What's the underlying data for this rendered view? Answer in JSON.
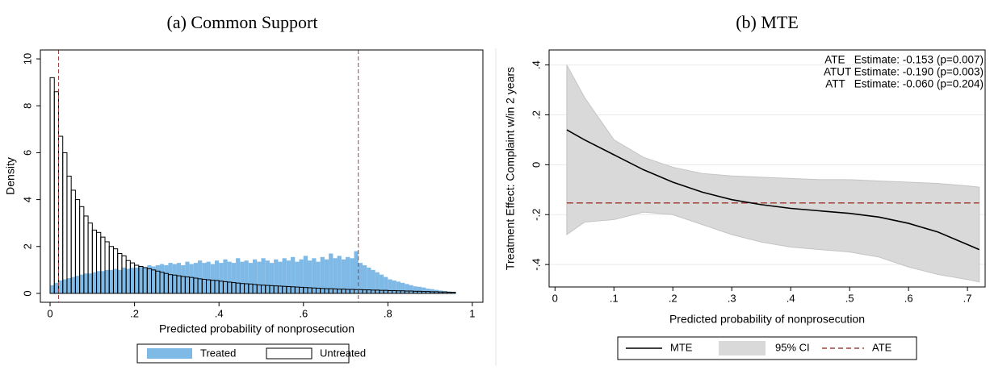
{
  "chart_data": [
    {
      "type": "histogram",
      "title": "(a) Common Support",
      "x_label": "Predicted probability of nonprosecution",
      "y_label": "Density",
      "bins": [
        0,
        0.01,
        0.02,
        0.03,
        0.04,
        0.05,
        0.06,
        0.07,
        0.08,
        0.09,
        0.1,
        0.11,
        0.12,
        0.13,
        0.14,
        0.15,
        0.16,
        0.17,
        0.18,
        0.19,
        0.2,
        0.21,
        0.22,
        0.23,
        0.24,
        0.25,
        0.26,
        0.27,
        0.28,
        0.29,
        0.3,
        0.31,
        0.32,
        0.33,
        0.34,
        0.35,
        0.36,
        0.37,
        0.38,
        0.39,
        0.4,
        0.41,
        0.42,
        0.43,
        0.44,
        0.45,
        0.46,
        0.47,
        0.48,
        0.49,
        0.5,
        0.51,
        0.52,
        0.53,
        0.54,
        0.55,
        0.56,
        0.57,
        0.58,
        0.59,
        0.6,
        0.61,
        0.62,
        0.63,
        0.64,
        0.65,
        0.66,
        0.67,
        0.68,
        0.69,
        0.7,
        0.71,
        0.72,
        0.73,
        0.74,
        0.75,
        0.76,
        0.77,
        0.78,
        0.79,
        0.8,
        0.81,
        0.82,
        0.83,
        0.84,
        0.85,
        0.86,
        0.87,
        0.88,
        0.89,
        0.9,
        0.91,
        0.92,
        0.93,
        0.94,
        0.95,
        0.96
      ],
      "series": [
        {
          "name": "Treated",
          "color": "#7fb9e6",
          "values": [
            0.35,
            0.45,
            0.55,
            0.6,
            0.65,
            0.7,
            0.75,
            0.8,
            0.85,
            0.85,
            0.9,
            0.95,
            0.95,
            1.0,
            1.0,
            1.05,
            1.0,
            1.1,
            1.05,
            1.1,
            1.1,
            1.15,
            1.1,
            1.2,
            1.15,
            1.2,
            1.25,
            1.2,
            1.3,
            1.25,
            1.3,
            1.2,
            1.35,
            1.25,
            1.3,
            1.4,
            1.3,
            1.35,
            1.25,
            1.4,
            1.3,
            1.45,
            1.35,
            1.3,
            1.5,
            1.35,
            1.4,
            1.3,
            1.45,
            1.35,
            1.5,
            1.4,
            1.3,
            1.45,
            1.35,
            1.5,
            1.4,
            1.55,
            1.35,
            1.45,
            1.6,
            1.4,
            1.5,
            1.35,
            1.55,
            1.45,
            1.7,
            1.5,
            1.6,
            1.45,
            1.55,
            1.5,
            1.8,
            1.3,
            1.2,
            1.1,
            1.0,
            0.9,
            0.8,
            0.7,
            0.6,
            0.55,
            0.5,
            0.45,
            0.4,
            0.35,
            0.3,
            0.28,
            0.25,
            0.2,
            0.18,
            0.15,
            0.12,
            0.1,
            0.08,
            0.05
          ]
        },
        {
          "name": "Untreated",
          "color": "#000000",
          "values": [
            9.2,
            8.6,
            6.7,
            6.0,
            5.0,
            4.4,
            4.0,
            3.7,
            3.3,
            3.0,
            2.7,
            2.6,
            2.4,
            2.2,
            2.0,
            1.9,
            1.7,
            1.6,
            1.4,
            1.3,
            1.2,
            1.15,
            1.1,
            1.05,
            1.0,
            0.95,
            0.9,
            0.85,
            0.8,
            0.78,
            0.75,
            0.72,
            0.7,
            0.68,
            0.65,
            0.62,
            0.6,
            0.58,
            0.56,
            0.55,
            0.52,
            0.5,
            0.48,
            0.46,
            0.44,
            0.42,
            0.41,
            0.4,
            0.38,
            0.36,
            0.35,
            0.34,
            0.33,
            0.32,
            0.31,
            0.3,
            0.29,
            0.28,
            0.27,
            0.26,
            0.25,
            0.24,
            0.23,
            0.22,
            0.21,
            0.2,
            0.2,
            0.19,
            0.18,
            0.18,
            0.17,
            0.17,
            0.16,
            0.16,
            0.15,
            0.15,
            0.14,
            0.14,
            0.13,
            0.13,
            0.12,
            0.12,
            0.11,
            0.11,
            0.1,
            0.1,
            0.09,
            0.09,
            0.08,
            0.08,
            0.07,
            0.07,
            0.06,
            0.06,
            0.05,
            0.05
          ]
        }
      ],
      "vlines": [
        0.02,
        0.73
      ],
      "xlim": [
        -0.023,
        1.025
      ],
      "ylim": [
        -0.38,
        10.38
      ],
      "xticks": [
        0,
        {
          "value": 0.2,
          "label": ".2"
        },
        {
          "value": 0.4,
          "label": ".4"
        },
        {
          "value": 0.6,
          "label": ".6"
        },
        {
          "value": 0.8,
          "label": ".8"
        },
        1
      ],
      "yticks": [
        0,
        2,
        4,
        6,
        8,
        10
      ]
    },
    {
      "type": "line",
      "title": "(b) MTE",
      "x_label": "Predicted probability of nonprosecution",
      "y_label": "Treatment Effect: Complaint w/in 2 years",
      "x": [
        0.02,
        0.05,
        0.1,
        0.15,
        0.2,
        0.25,
        0.3,
        0.35,
        0.4,
        0.45,
        0.5,
        0.55,
        0.6,
        0.65,
        0.7,
        0.72
      ],
      "series": [
        {
          "name": "MTE",
          "color": "#000000",
          "values": [
            0.14,
            0.1,
            0.04,
            -0.02,
            -0.07,
            -0.11,
            -0.14,
            -0.16,
            -0.175,
            -0.185,
            -0.195,
            -0.21,
            -0.235,
            -0.27,
            -0.32,
            -0.34
          ]
        },
        {
          "name": "95% CI",
          "color": "#d9d9d9",
          "upper": [
            0.4,
            0.27,
            0.1,
            0.03,
            -0.01,
            -0.035,
            -0.045,
            -0.05,
            -0.055,
            -0.06,
            -0.06,
            -0.065,
            -0.07,
            -0.075,
            -0.085,
            -0.09
          ],
          "lower": [
            -0.28,
            -0.23,
            -0.22,
            -0.19,
            -0.2,
            -0.24,
            -0.28,
            -0.31,
            -0.33,
            -0.34,
            -0.35,
            -0.37,
            -0.41,
            -0.44,
            -0.46,
            -0.47
          ]
        },
        {
          "name": "ATE",
          "color": "#a0443c",
          "value": -0.153
        }
      ],
      "annotations": [
        "ATE   Estimate: -0.153 (p=0.007)",
        "ATUT Estimate: -0.190 (p=0.003)",
        "ATT   Estimate: -0.060 (p=0.204)"
      ],
      "xlim": [
        -0.01,
        0.73
      ],
      "ylim": [
        -0.49,
        0.46
      ],
      "xticks": [
        0,
        {
          "value": 0.1,
          "label": ".1"
        },
        {
          "value": 0.2,
          "label": ".2"
        },
        {
          "value": 0.3,
          "label": ".3"
        },
        {
          "value": 0.4,
          "label": ".4"
        },
        {
          "value": 0.5,
          "label": ".5"
        },
        {
          "value": 0.6,
          "label": ".6"
        },
        {
          "value": 0.7,
          "label": ".7"
        }
      ],
      "yticks": [
        {
          "value": -0.4,
          "label": "-.4"
        },
        {
          "value": -0.2,
          "label": "-.2"
        },
        0,
        {
          "value": 0.2,
          "label": ".2"
        },
        {
          "value": 0.4,
          "label": ".4"
        }
      ]
    }
  ]
}
